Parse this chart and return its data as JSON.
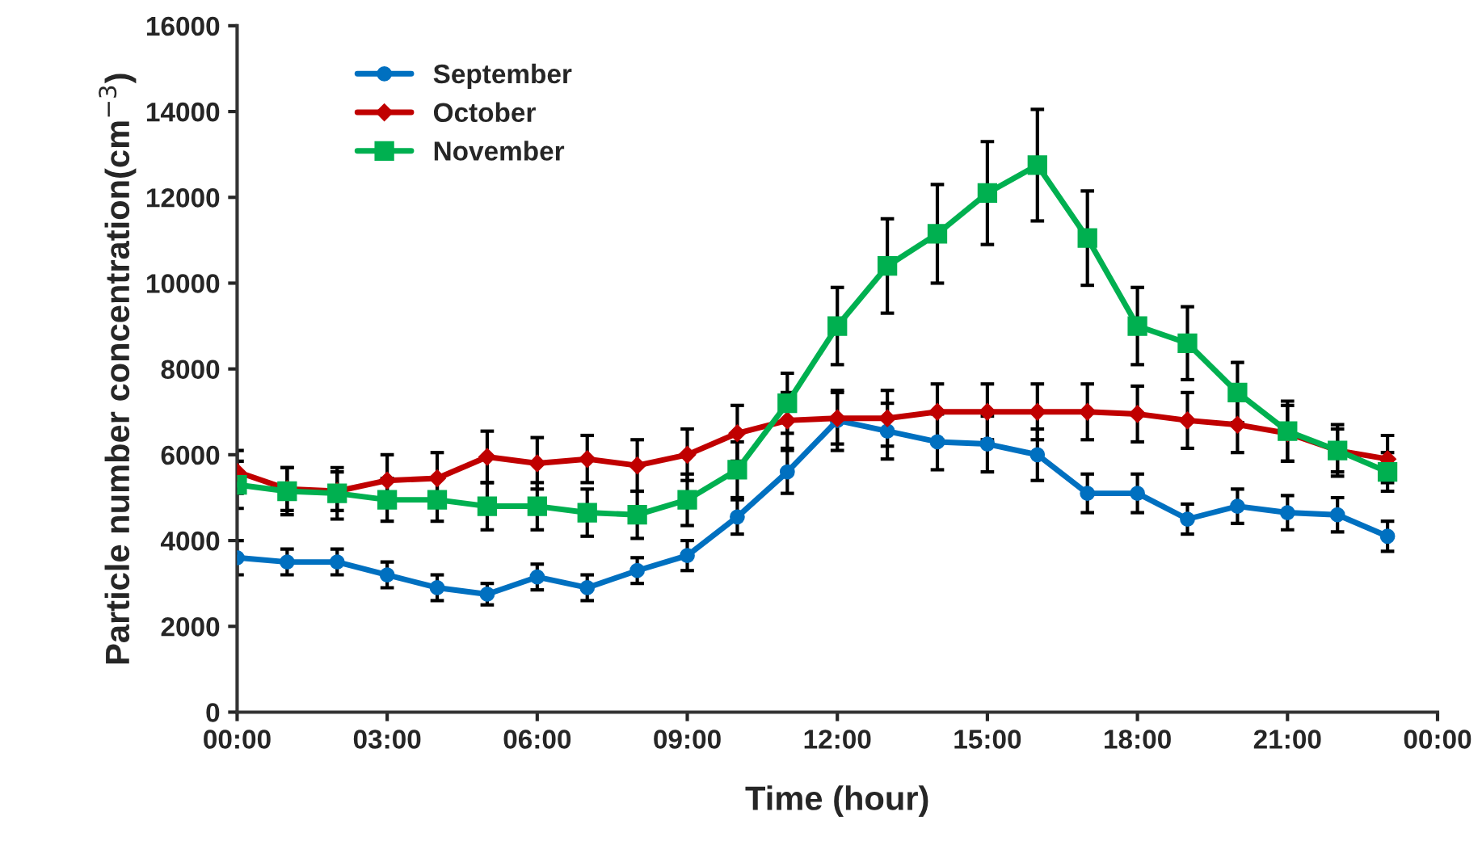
{
  "chart_data": {
    "type": "line",
    "xlabel": "Time (hour)",
    "ylabel": "Particle number concentration(cm$^{−3}$)",
    "x": [
      0,
      1,
      2,
      3,
      4,
      5,
      6,
      7,
      8,
      9,
      10,
      11,
      12,
      13,
      14,
      15,
      16,
      17,
      18,
      19,
      20,
      21,
      22,
      23
    ],
    "xlim": [
      0,
      24
    ],
    "xticks": [
      {
        "value": 0,
        "label": "00:00"
      },
      {
        "value": 3,
        "label": "03:00"
      },
      {
        "value": 6,
        "label": "06:00"
      },
      {
        "value": 9,
        "label": "09:00"
      },
      {
        "value": 12,
        "label": "12:00"
      },
      {
        "value": 15,
        "label": "15:00"
      },
      {
        "value": 18,
        "label": "18:00"
      },
      {
        "value": 21,
        "label": "21:00"
      },
      {
        "value": 24,
        "label": "00:00"
      }
    ],
    "ylim": [
      0,
      16000
    ],
    "yticks": [
      0,
      2000,
      4000,
      6000,
      8000,
      10000,
      12000,
      14000,
      16000
    ],
    "grid": false,
    "legend": "top left",
    "series": [
      {
        "name": "September",
        "color": "#0070c0",
        "marker": "circle",
        "values": [
          3600,
          3500,
          3500,
          3200,
          2900,
          2750,
          3150,
          2900,
          3300,
          3650,
          4550,
          5600,
          6800,
          6550,
          6300,
          6250,
          6000,
          5100,
          5100,
          4500,
          4800,
          4650,
          4600,
          4100
        ],
        "errors": [
          400,
          300,
          300,
          300,
          300,
          250,
          300,
          300,
          300,
          350,
          400,
          500,
          700,
          650,
          650,
          650,
          600,
          450,
          450,
          350,
          400,
          400,
          400,
          350
        ]
      },
      {
        "name": "October",
        "color": "#c00000",
        "marker": "diamond",
        "values": [
          5600,
          5200,
          5150,
          5400,
          5450,
          5950,
          5800,
          5900,
          5750,
          6000,
          6500,
          6800,
          6850,
          6850,
          7000,
          7000,
          7000,
          7000,
          6950,
          6800,
          6700,
          6500,
          6100,
          5900
        ],
        "errors": [
          500,
          500,
          450,
          600,
          600,
          600,
          600,
          550,
          600,
          600,
          650,
          650,
          600,
          650,
          650,
          650,
          650,
          650,
          650,
          650,
          650,
          650,
          500,
          550
        ]
      },
      {
        "name": "November",
        "color": "#00b050",
        "marker": "square",
        "values": [
          5300,
          5150,
          5100,
          4950,
          4950,
          4800,
          4800,
          4650,
          4600,
          4950,
          5650,
          7200,
          9000,
          10400,
          11150,
          12100,
          12750,
          11050,
          9000,
          8600,
          7450,
          6550,
          6100,
          5600
        ],
        "errors": [
          550,
          550,
          600,
          500,
          500,
          550,
          550,
          550,
          550,
          600,
          650,
          700,
          900,
          1100,
          1150,
          1200,
          1300,
          1100,
          900,
          850,
          700,
          700,
          600,
          450
        ]
      }
    ]
  }
}
